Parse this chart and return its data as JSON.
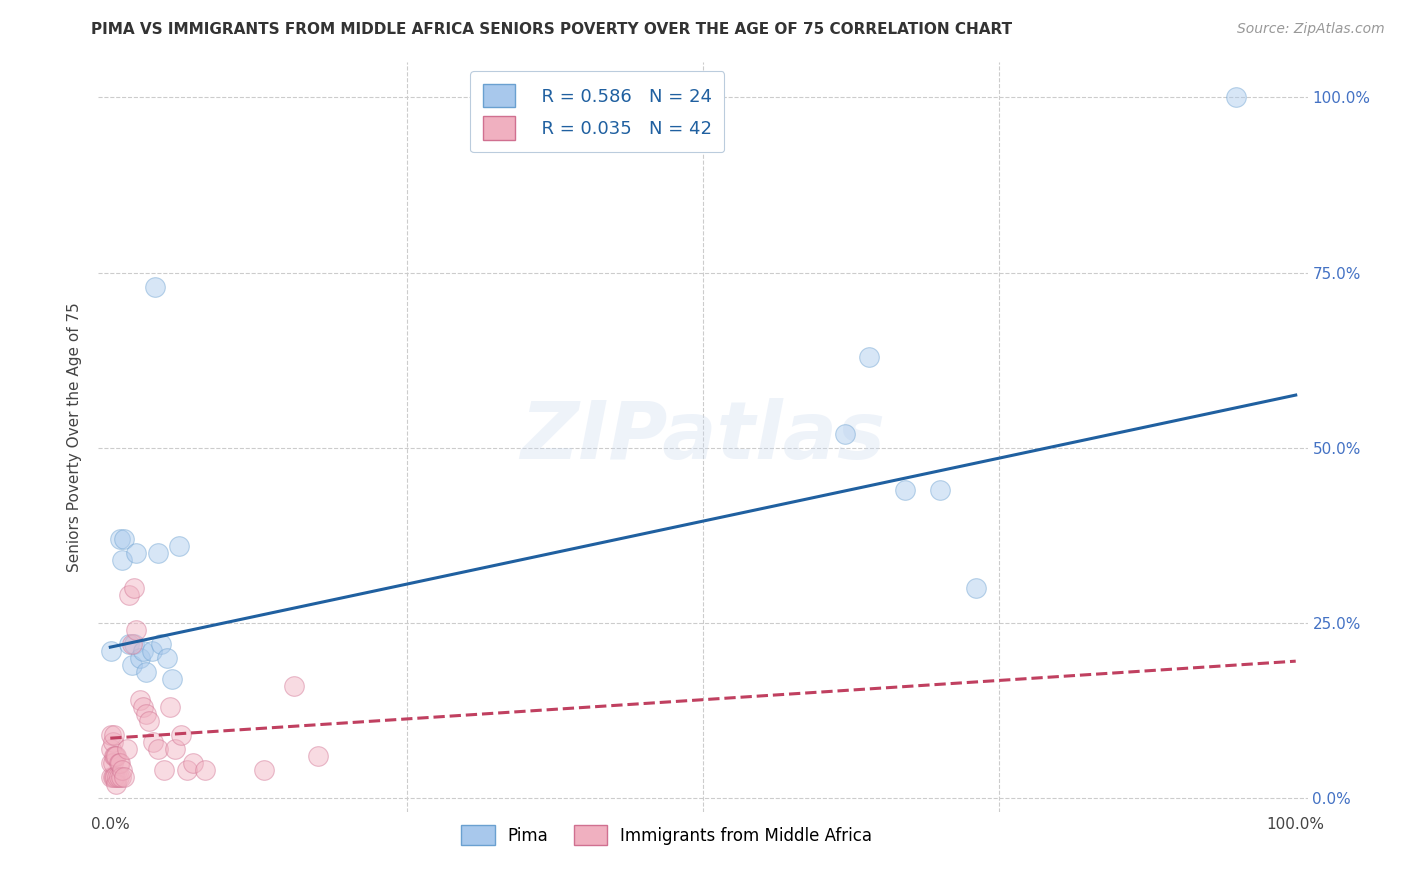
{
  "title": "PIMA VS IMMIGRANTS FROM MIDDLE AFRICA SENIORS POVERTY OVER THE AGE OF 75 CORRELATION CHART",
  "source": "Source: ZipAtlas.com",
  "ylabel": "Seniors Poverty Over the Age of 75",
  "watermark": "ZIPatlas",
  "pima_color": "#A8C8EC",
  "pima_edge_color": "#6AA0D0",
  "immig_color": "#F0B0C0",
  "immig_edge_color": "#D07090",
  "pima_R": 0.586,
  "pima_N": 24,
  "immig_R": 0.035,
  "immig_N": 42,
  "pima_line_color": "#2060A0",
  "immig_line_color": "#C04060",
  "grid_color": "#CCCCCC",
  "background_color": "#FFFFFF",
  "pima_x": [
    0.001,
    0.008,
    0.01,
    0.012,
    0.016,
    0.018,
    0.02,
    0.022,
    0.025,
    0.028,
    0.03,
    0.035,
    0.038,
    0.04,
    0.043,
    0.048,
    0.052,
    0.058,
    0.62,
    0.64,
    0.67,
    0.7,
    0.73,
    0.95
  ],
  "pima_y": [
    0.21,
    0.37,
    0.34,
    0.37,
    0.22,
    0.19,
    0.22,
    0.35,
    0.2,
    0.21,
    0.18,
    0.21,
    0.73,
    0.35,
    0.22,
    0.2,
    0.17,
    0.36,
    0.52,
    0.63,
    0.44,
    0.44,
    0.3,
    1.0
  ],
  "immig_x": [
    0.001,
    0.001,
    0.001,
    0.001,
    0.002,
    0.002,
    0.002,
    0.003,
    0.003,
    0.003,
    0.004,
    0.004,
    0.005,
    0.005,
    0.006,
    0.007,
    0.007,
    0.008,
    0.009,
    0.01,
    0.012,
    0.014,
    0.016,
    0.018,
    0.02,
    0.022,
    0.025,
    0.028,
    0.03,
    0.033,
    0.036,
    0.04,
    0.045,
    0.05,
    0.055,
    0.06,
    0.065,
    0.07,
    0.08,
    0.13,
    0.155,
    0.175
  ],
  "immig_y": [
    0.03,
    0.05,
    0.07,
    0.09,
    0.03,
    0.05,
    0.08,
    0.03,
    0.06,
    0.09,
    0.03,
    0.06,
    0.02,
    0.06,
    0.03,
    0.03,
    0.05,
    0.05,
    0.03,
    0.04,
    0.03,
    0.07,
    0.29,
    0.22,
    0.3,
    0.24,
    0.14,
    0.13,
    0.12,
    0.11,
    0.08,
    0.07,
    0.04,
    0.13,
    0.07,
    0.09,
    0.04,
    0.05,
    0.04,
    0.04,
    0.16,
    0.06
  ],
  "pima_line_x": [
    0.0,
    1.0
  ],
  "pima_line_y": [
    0.215,
    0.575
  ],
  "immig_line_x": [
    0.0,
    1.0
  ],
  "immig_line_y": [
    0.085,
    0.195
  ],
  "xlim": [
    -0.01,
    1.01
  ],
  "ylim": [
    -0.02,
    1.05
  ],
  "xticks": [
    0.0,
    0.25,
    0.5,
    0.75,
    1.0
  ],
  "xtick_labels": [
    "0.0%",
    "",
    "",
    "",
    "100.0%"
  ],
  "yticks": [
    0.0,
    0.25,
    0.5,
    0.75,
    1.0
  ],
  "ytick_labels_right": [
    "0.0%",
    "25.0%",
    "50.0%",
    "75.0%",
    "100.0%"
  ],
  "marker_size": 200,
  "marker_alpha": 0.45,
  "line_width": 2.2,
  "title_fontsize": 11,
  "label_fontsize": 11,
  "tick_fontsize": 11
}
